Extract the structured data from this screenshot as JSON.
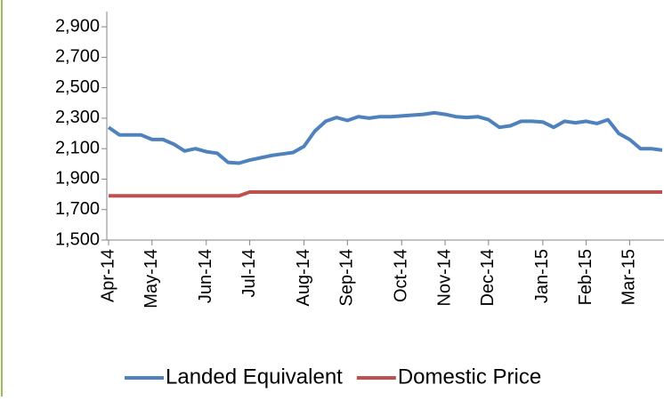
{
  "chart_data": {
    "type": "line",
    "categories": [
      "Apr-14",
      null,
      null,
      null,
      "May-14",
      null,
      null,
      null,
      null,
      "Jun-14",
      null,
      null,
      null,
      "Jul-14",
      null,
      null,
      null,
      null,
      "Aug-14",
      null,
      null,
      null,
      "Sep-14",
      null,
      null,
      null,
      null,
      "Oct-14",
      null,
      null,
      null,
      "Nov-14",
      null,
      null,
      null,
      "Dec-14",
      null,
      null,
      null,
      null,
      "Jan-15",
      null,
      null,
      null,
      "Feb-15",
      null,
      null,
      null,
      "Mar-15",
      null,
      null,
      null
    ],
    "series": [
      {
        "name": "Landed Equivalent",
        "color": "#4f81bd",
        "values": [
          2240,
          2190,
          2190,
          2190,
          2160,
          2160,
          2130,
          2085,
          2100,
          2080,
          2070,
          2010,
          2005,
          2025,
          2040,
          2055,
          2065,
          2075,
          2115,
          2215,
          2280,
          2305,
          2285,
          2310,
          2300,
          2310,
          2310,
          2315,
          2320,
          2325,
          2335,
          2325,
          2310,
          2305,
          2310,
          2290,
          2240,
          2250,
          2280,
          2280,
          2275,
          2240,
          2280,
          2270,
          2280,
          2265,
          2290,
          2200,
          2160,
          2100,
          2100,
          2090
        ]
      },
      {
        "name": "Domestic Price",
        "color": "#c0504d",
        "values": [
          1790,
          1790,
          1790,
          1790,
          1790,
          1790,
          1790,
          1790,
          1790,
          1790,
          1790,
          1790,
          1790,
          1815,
          1815,
          1815,
          1815,
          1815,
          1815,
          1815,
          1815,
          1815,
          1815,
          1815,
          1815,
          1815,
          1815,
          1815,
          1815,
          1815,
          1815,
          1815,
          1815,
          1815,
          1815,
          1815,
          1815,
          1815,
          1815,
          1815,
          1815,
          1815,
          1815,
          1815,
          1815,
          1815,
          1815,
          1815,
          1815,
          1815,
          1815,
          1815
        ]
      }
    ],
    "ylim": [
      1500,
      3000
    ],
    "yticks": [
      {
        "value": 1500,
        "label": "1,500"
      },
      {
        "value": 1700,
        "label": "1,700"
      },
      {
        "value": 1900,
        "label": "1,900"
      },
      {
        "value": 2100,
        "label": "2,100"
      },
      {
        "value": 2300,
        "label": "2,300"
      },
      {
        "value": 2500,
        "label": "2,500"
      },
      {
        "value": 2700,
        "label": "2,700"
      },
      {
        "value": 2900,
        "label": "2,900"
      }
    ],
    "grid": false,
    "legend": "bottom"
  }
}
